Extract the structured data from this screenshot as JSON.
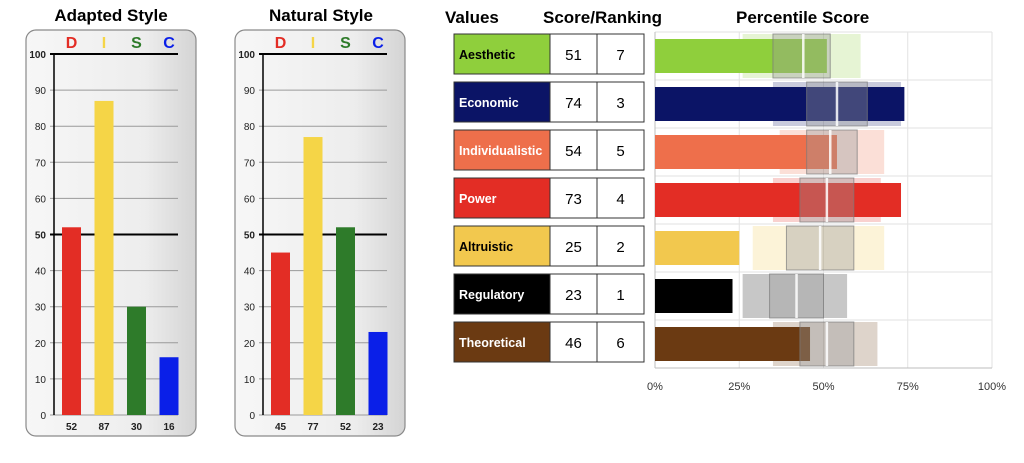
{
  "chart_data": [
    {
      "type": "bar",
      "title": "Adapted Style",
      "categories": [
        "D",
        "I",
        "S",
        "C"
      ],
      "values": [
        52,
        87,
        30,
        16
      ],
      "value_labels": [
        "52",
        "87",
        "30",
        "16"
      ],
      "ylim": [
        0,
        100
      ],
      "yticks": [
        "0",
        "10",
        "20",
        "30",
        "40",
        "50",
        "60",
        "70",
        "80",
        "90",
        "100"
      ],
      "colors": [
        "#e32d25",
        "#f5d547",
        "#2e7b2a",
        "#0a1fe8"
      ],
      "grid": true
    },
    {
      "type": "bar",
      "title": "Natural Style",
      "categories": [
        "D",
        "I",
        "S",
        "C"
      ],
      "values": [
        45,
        77,
        52,
        23
      ],
      "value_labels": [
        "45",
        "77",
        "52",
        "23"
      ],
      "ylim": [
        0,
        100
      ],
      "yticks": [
        "0",
        "10",
        "20",
        "30",
        "40",
        "50",
        "60",
        "70",
        "80",
        "90",
        "100"
      ],
      "colors": [
        "#e32d25",
        "#f5d547",
        "#2e7b2a",
        "#0a1fe8"
      ],
      "grid": true
    },
    {
      "type": "table",
      "columns": [
        "Values",
        "Score/Ranking"
      ],
      "rows": [
        {
          "label": "Aesthetic",
          "score": "51",
          "rank": "7",
          "color": "#8fcf3c",
          "text_color": "#000000"
        },
        {
          "label": "Economic",
          "score": "74",
          "rank": "3",
          "color": "#0b1466",
          "text_color": "#ffffff"
        },
        {
          "label": "Individualistic",
          "score": "54",
          "rank": "5",
          "color": "#ee6f4b",
          "text_color": "#ffffff"
        },
        {
          "label": "Power",
          "score": "73",
          "rank": "4",
          "color": "#e32d25",
          "text_color": "#ffffff"
        },
        {
          "label": "Altruistic",
          "score": "25",
          "rank": "2",
          "color": "#f2c84e",
          "text_color": "#000000"
        },
        {
          "label": "Regulatory",
          "score": "23",
          "rank": "1",
          "color": "#000000",
          "text_color": "#ffffff"
        },
        {
          "label": "Theoretical",
          "score": "46",
          "rank": "6",
          "color": "#6b3a12",
          "text_color": "#ffffff"
        }
      ]
    },
    {
      "type": "bar",
      "title": "Percentile Score",
      "orientation": "horizontal",
      "categories": [
        "Aesthetic",
        "Economic",
        "Individualistic",
        "Power",
        "Altruistic",
        "Regulatory",
        "Theoretical"
      ],
      "values": [
        51,
        74,
        54,
        73,
        25,
        23,
        46
      ],
      "range_outer": [
        [
          26,
          61
        ],
        [
          35,
          73
        ],
        [
          37,
          68
        ],
        [
          35,
          67
        ],
        [
          29,
          68
        ],
        [
          26,
          57
        ],
        [
          35,
          66
        ]
      ],
      "range_inner": [
        [
          35,
          52
        ],
        [
          45,
          63
        ],
        [
          45,
          60
        ],
        [
          43,
          59
        ],
        [
          39,
          59
        ],
        [
          34,
          50
        ],
        [
          43,
          59
        ]
      ],
      "range_mid": [
        44,
        54,
        52,
        51,
        49,
        42,
        51
      ],
      "colors": [
        "#8fcf3c",
        "#0b1466",
        "#ee6f4b",
        "#e32d25",
        "#f2c84e",
        "#000000",
        "#6b3a12"
      ],
      "xlim": [
        0,
        100
      ],
      "xticks": [
        "0%",
        "25%",
        "50%",
        "75%",
        "100%"
      ],
      "grid": true
    }
  ]
}
